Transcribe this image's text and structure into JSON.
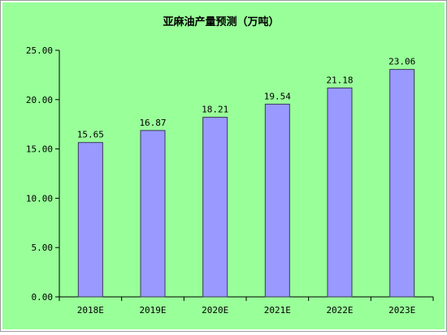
{
  "colors": {
    "background": "#99FF99",
    "bar_fill": "#9999FF",
    "bar_stroke": "#3a3a5a",
    "axis": "#000000"
  },
  "chart_data": {
    "type": "bar",
    "title": "亚麻油产量预测（万吨）",
    "categories": [
      "2018E",
      "2019E",
      "2020E",
      "2021E",
      "2022E",
      "2023E"
    ],
    "values": [
      15.65,
      16.87,
      18.21,
      19.54,
      21.18,
      23.06
    ],
    "data_labels": [
      "15.65",
      "16.87",
      "18.21",
      "19.54",
      "21.18",
      "23.06"
    ],
    "ylim": [
      0,
      25
    ],
    "yticks": [
      0,
      5,
      10,
      15,
      20,
      25
    ],
    "ytick_labels": [
      "0.00",
      "5.00",
      "10.00",
      "15.00",
      "20.00",
      "25.00"
    ],
    "xlabel": "",
    "ylabel": "",
    "grid": false,
    "legend": "none"
  }
}
